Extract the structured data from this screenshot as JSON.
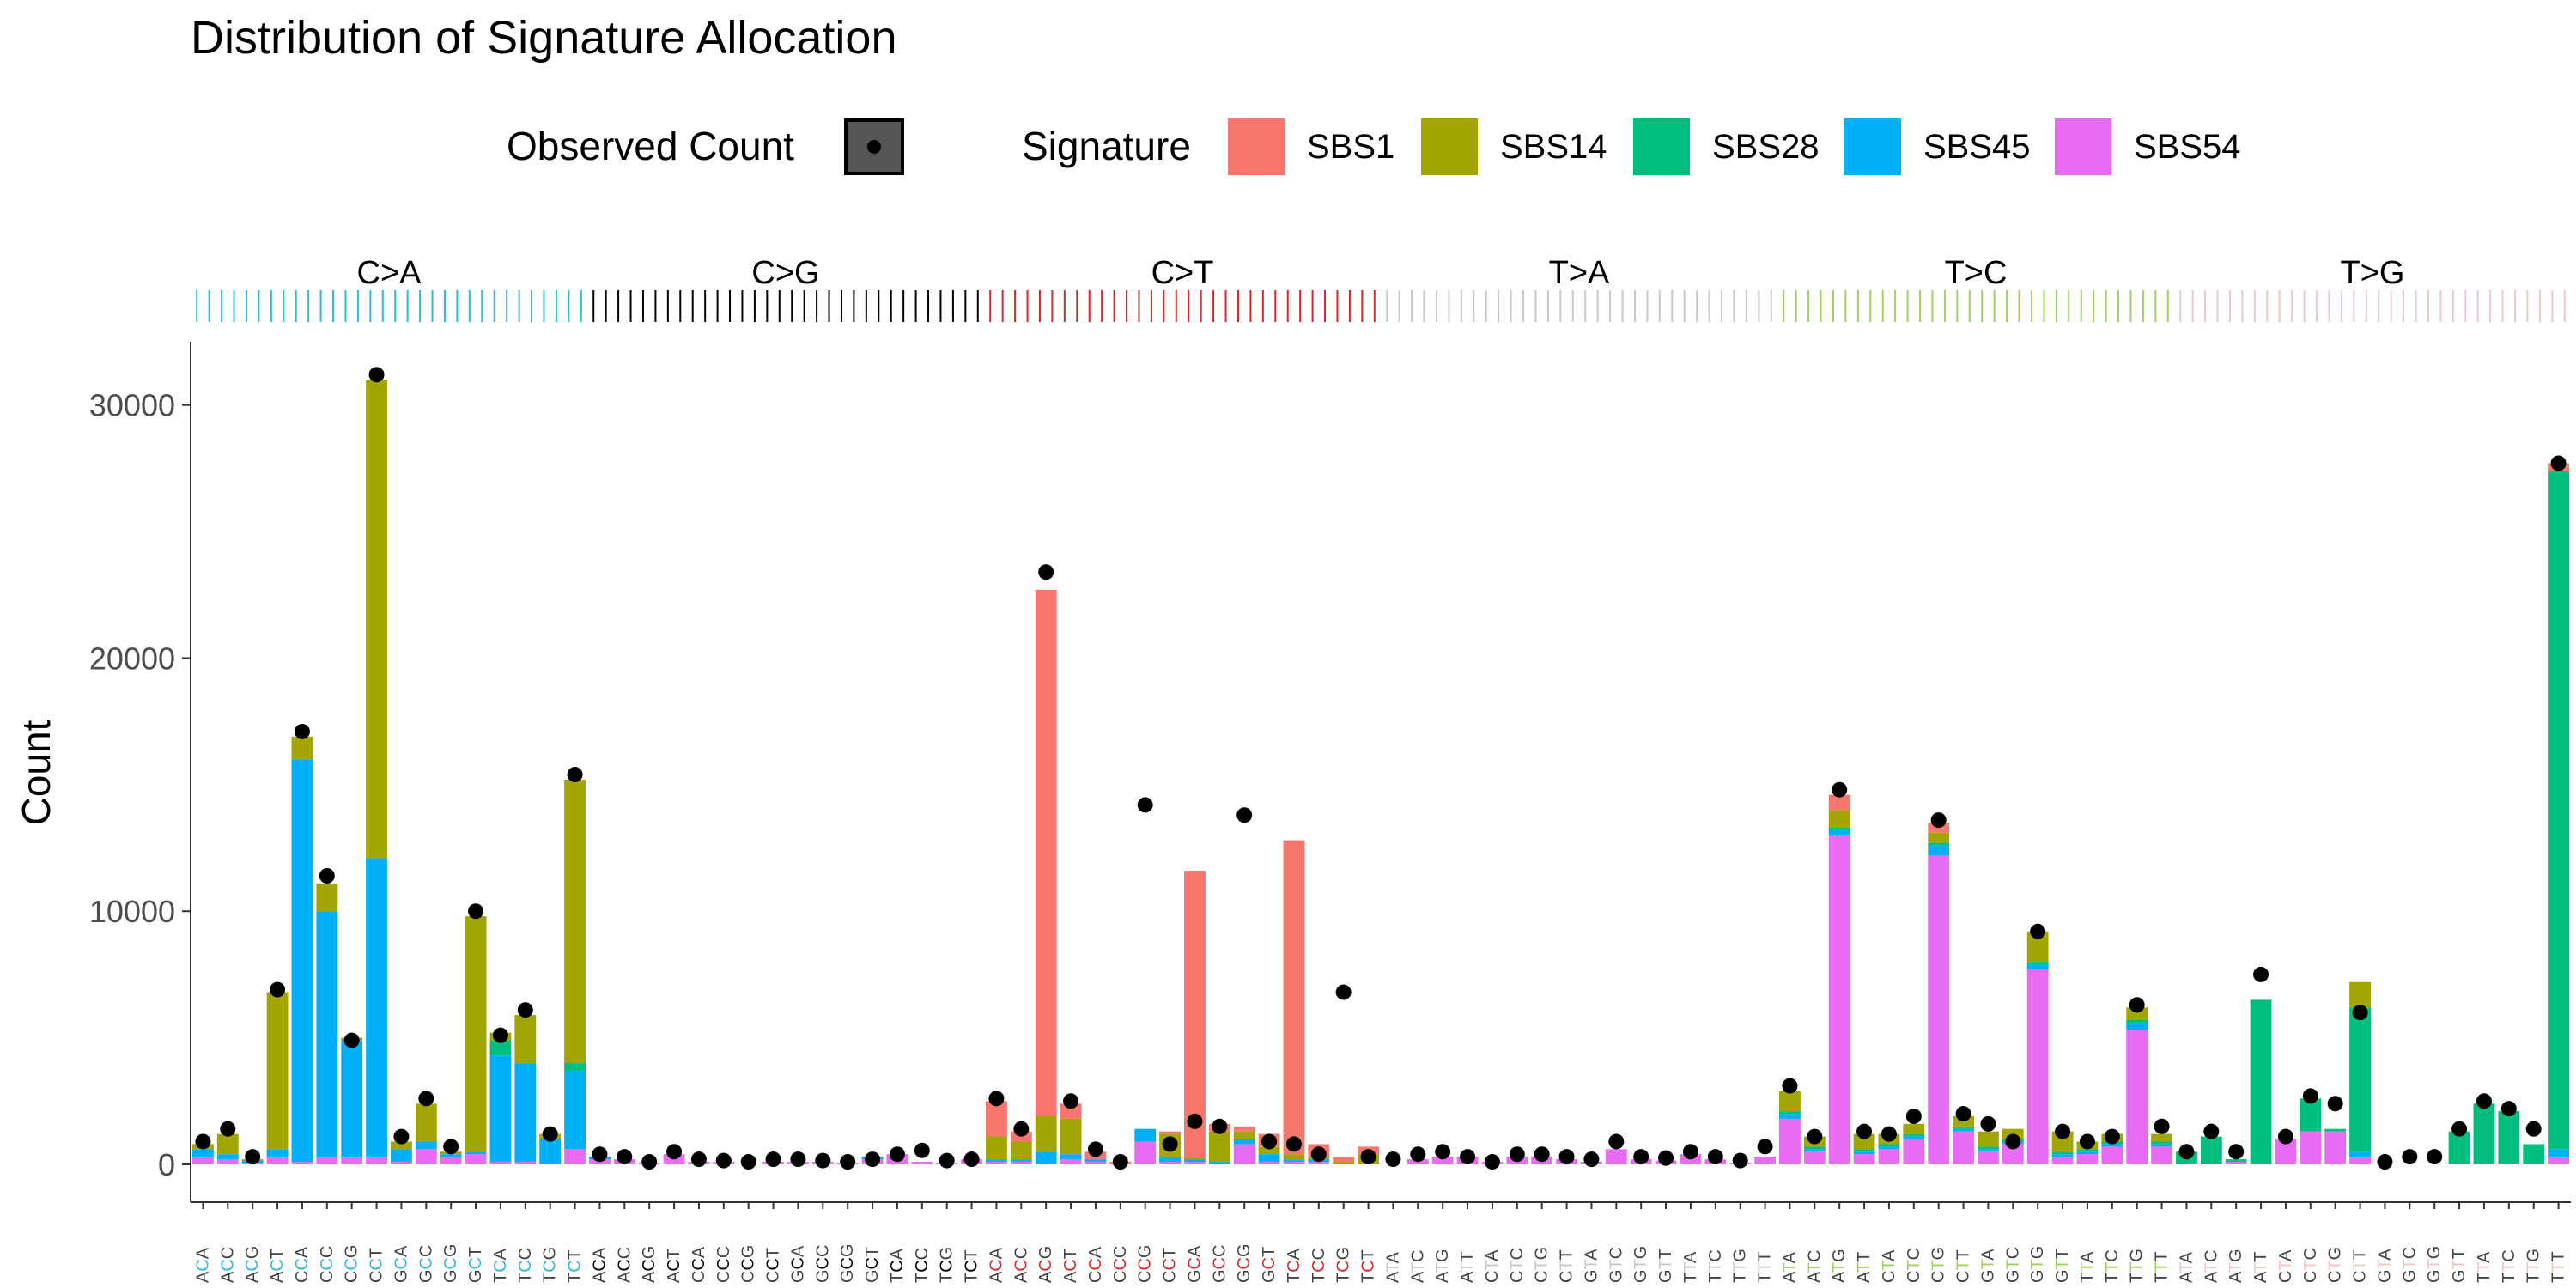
{
  "chart_data": {
    "type": "bar",
    "stacked": true,
    "title": "Distribution of Signature Allocation",
    "xlabel": "",
    "ylabel": "Count",
    "ylim": [
      0,
      32500
    ],
    "yticks": [
      0,
      10000,
      20000,
      30000
    ],
    "grid": false,
    "legend": {
      "placement": "top",
      "observed_title": "Observed Count",
      "signature_title": "Signature",
      "items": [
        {
          "name": "SBS1",
          "color": "#F8766D"
        },
        {
          "name": "SBS14",
          "color": "#A3A500"
        },
        {
          "name": "SBS28",
          "color": "#00BF7D"
        },
        {
          "name": "SBS45",
          "color": "#00B0F6"
        },
        {
          "name": "SBS54",
          "color": "#E76BF3"
        }
      ]
    },
    "mutation_types": [
      {
        "label": "C>A",
        "color": "#2EBAD8",
        "categories": [
          "ACA",
          "ACC",
          "ACG",
          "ACT",
          "CCA",
          "CCC",
          "CCG",
          "CCT",
          "GCA",
          "GCC",
          "GCG",
          "GCT",
          "TCA",
          "TCC",
          "TCG",
          "TCT"
        ]
      },
      {
        "label": "C>G",
        "color": "#000000",
        "categories": [
          "ACA",
          "ACC",
          "ACG",
          "ACT",
          "CCA",
          "CCC",
          "CCG",
          "CCT",
          "GCA",
          "GCC",
          "GCG",
          "GCT",
          "TCA",
          "TCC",
          "TCG",
          "TCT"
        ]
      },
      {
        "label": "C>T",
        "color": "#D8262A",
        "categories": [
          "ACA",
          "ACC",
          "ACG",
          "ACT",
          "CCA",
          "CCC",
          "CCG",
          "CCT",
          "GCA",
          "GCC",
          "GCG",
          "GCT",
          "TCA",
          "TCC",
          "TCG",
          "TCT"
        ]
      },
      {
        "label": "T>A",
        "color": "#C9C9C9",
        "categories": [
          "ATA",
          "ATC",
          "ATG",
          "ATT",
          "CTA",
          "CTC",
          "CTG",
          "CTT",
          "GTA",
          "GTC",
          "GTG",
          "GTT",
          "TTA",
          "TTC",
          "TTG",
          "TTT"
        ]
      },
      {
        "label": "T>C",
        "color": "#A1CF64",
        "categories": [
          "ATA",
          "ATC",
          "ATG",
          "ATT",
          "CTA",
          "CTC",
          "CTG",
          "CTT",
          "GTA",
          "GTC",
          "GTG",
          "GTT",
          "TTA",
          "TTC",
          "TTG",
          "TTT"
        ]
      },
      {
        "label": "T>G",
        "color": "#EDC8C5",
        "categories": [
          "ATA",
          "ATC",
          "ATG",
          "ATT",
          "CTA",
          "CTC",
          "CTG",
          "CTT",
          "GTA",
          "GTC",
          "GTG",
          "GTT",
          "TTA",
          "TTC",
          "TTG",
          "TTT"
        ]
      }
    ],
    "series": [
      {
        "name": "SBS1",
        "values": [
          0,
          0,
          0,
          0,
          0,
          0,
          0,
          0,
          0,
          0,
          0,
          0,
          0,
          0,
          0,
          0,
          0,
          0,
          0,
          0,
          0,
          0,
          0,
          0,
          0,
          0,
          0,
          0,
          0,
          0,
          0,
          0,
          1400,
          400,
          20800,
          600,
          300,
          100,
          0,
          100,
          11300,
          300,
          200,
          500,
          12400,
          500,
          200,
          300,
          0,
          0,
          0,
          0,
          0,
          0,
          0,
          0,
          0,
          0,
          0,
          0,
          0,
          0,
          0,
          0,
          0,
          0,
          600,
          0,
          0,
          0,
          400,
          0,
          0,
          0,
          0,
          0,
          0,
          0,
          0,
          0,
          0,
          0,
          0,
          0,
          0,
          0,
          0,
          0,
          0,
          0,
          0,
          0,
          0,
          0,
          0,
          300
        ]
      },
      {
        "name": "SBS14",
        "values": [
          200,
          800,
          50,
          6200,
          900,
          1100,
          100,
          18900,
          300,
          1500,
          100,
          9300,
          300,
          1900,
          200,
          11200,
          0,
          0,
          0,
          0,
          0,
          0,
          0,
          0,
          0,
          0,
          0,
          0,
          0,
          0,
          0,
          0,
          900,
          700,
          1400,
          1400,
          0,
          0,
          0,
          900,
          100,
          1200,
          300,
          300,
          200,
          100,
          100,
          400,
          0,
          0,
          0,
          0,
          0,
          0,
          0,
          0,
          0,
          0,
          0,
          0,
          0,
          0,
          0,
          0,
          800,
          400,
          700,
          600,
          400,
          400,
          400,
          400,
          600,
          400,
          1200,
          800,
          300,
          300,
          500,
          300,
          0,
          0,
          0,
          0,
          0,
          0,
          0,
          1000,
          0,
          0,
          0,
          0,
          0,
          0,
          0,
          0
        ]
      },
      {
        "name": "SBS28",
        "values": [
          0,
          0,
          0,
          0,
          0,
          0,
          0,
          0,
          0,
          0,
          0,
          0,
          600,
          0,
          0,
          300,
          0,
          0,
          0,
          0,
          0,
          0,
          0,
          0,
          0,
          0,
          0,
          0,
          0,
          0,
          0,
          0,
          0,
          0,
          0,
          0,
          0,
          0,
          0,
          0,
          0,
          0,
          0,
          0,
          0,
          0,
          0,
          0,
          0,
          0,
          0,
          0,
          0,
          0,
          0,
          0,
          0,
          0,
          0,
          0,
          0,
          0,
          0,
          0,
          100,
          100,
          100,
          100,
          100,
          100,
          100,
          100,
          100,
          100,
          100,
          100,
          100,
          100,
          100,
          100,
          500,
          1100,
          100,
          6500,
          0,
          1300,
          100,
          5700,
          0,
          0,
          0,
          1300,
          2400,
          2100,
          800,
          26800
        ]
      },
      {
        "name": "SBS45",
        "values": [
          300,
          200,
          100,
          300,
          15900,
          9700,
          4600,
          11800,
          500,
          300,
          100,
          100,
          4200,
          3900,
          1000,
          3100,
          100,
          0,
          0,
          0,
          0,
          0,
          0,
          0,
          0,
          0,
          0,
          100,
          0,
          0,
          0,
          0,
          100,
          100,
          500,
          200,
          100,
          0,
          500,
          200,
          100,
          100,
          200,
          300,
          100,
          100,
          0,
          0,
          0,
          0,
          0,
          0,
          0,
          0,
          0,
          0,
          0,
          0,
          0,
          0,
          0,
          0,
          0,
          0,
          200,
          100,
          200,
          100,
          100,
          100,
          400,
          100,
          100,
          100,
          200,
          100,
          100,
          100,
          300,
          100,
          0,
          0,
          0,
          0,
          0,
          0,
          0,
          200,
          0,
          0,
          0,
          0,
          0,
          0,
          0,
          300
        ]
      },
      {
        "name": "SBS54",
        "values": [
          300,
          200,
          50,
          300,
          100,
          300,
          300,
          300,
          100,
          600,
          300,
          400,
          100,
          100,
          0,
          600,
          200,
          200,
          50,
          400,
          100,
          100,
          0,
          100,
          100,
          100,
          50,
          200,
          400,
          100,
          50,
          200,
          100,
          100,
          0,
          200,
          100,
          0,
          900,
          100,
          100,
          0,
          800,
          100,
          100,
          100,
          0,
          0,
          0,
          200,
          300,
          300,
          100,
          300,
          300,
          200,
          100,
          600,
          200,
          150,
          400,
          200,
          50,
          300,
          1800,
          500,
          13000,
          400,
          600,
          1000,
          12200,
          1300,
          500,
          800,
          7700,
          300,
          400,
          700,
          5300,
          700,
          0,
          0,
          100,
          0,
          1000,
          1300,
          1300,
          300,
          0,
          0,
          0,
          0,
          0,
          0,
          0,
          300
        ]
      }
    ],
    "observed": [
      900,
      1400,
      300,
      6900,
      17100,
      11400,
      4900,
      31200,
      1100,
      2600,
      700,
      10000,
      5100,
      6100,
      1200,
      15400,
      400,
      300,
      100,
      500,
      200,
      150,
      100,
      200,
      200,
      150,
      100,
      200,
      400,
      550,
      150,
      200,
      2600,
      1400,
      23400,
      2500,
      600,
      100,
      14200,
      800,
      1700,
      1500,
      13800,
      900,
      800,
      400,
      6800,
      300,
      200,
      400,
      500,
      300,
      100,
      400,
      400,
      300,
      200,
      900,
      300,
      250,
      500,
      300,
      150,
      700,
      3100,
      1100,
      14800,
      1300,
      1200,
      1900,
      13600,
      2000,
      1600,
      900,
      9200,
      1300,
      900,
      1100,
      6300,
      1500,
      500,
      1300,
      500,
      7500,
      1100,
      2700,
      2400,
      6000,
      100,
      300,
      300,
      1400,
      2500,
      2200,
      1400,
      27700
    ]
  }
}
